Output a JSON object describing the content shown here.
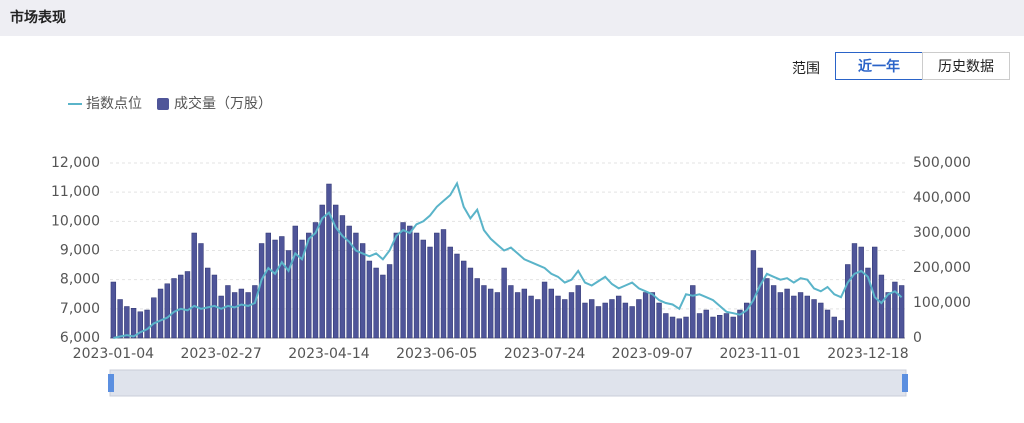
{
  "ui": {
    "title": "市场表现",
    "range_label": "范围",
    "buttons": [
      "近一年",
      "历史数据"
    ]
  },
  "chart_data": {
    "type": "combo",
    "categories": [
      "2023-01-04",
      null,
      null,
      null,
      null,
      null,
      null,
      null,
      null,
      null,
      null,
      null,
      null,
      null,
      null,
      null,
      "2023-02-27",
      null,
      null,
      null,
      null,
      null,
      null,
      null,
      null,
      null,
      null,
      null,
      null,
      null,
      null,
      null,
      "2023-04-14",
      null,
      null,
      null,
      null,
      null,
      null,
      null,
      null,
      null,
      null,
      null,
      null,
      null,
      null,
      null,
      "2023-06-05",
      null,
      null,
      null,
      null,
      null,
      null,
      null,
      null,
      null,
      null,
      null,
      null,
      null,
      null,
      null,
      "2023-07-24",
      null,
      null,
      null,
      null,
      null,
      null,
      null,
      null,
      null,
      null,
      null,
      null,
      null,
      null,
      null,
      "2023-09-07",
      null,
      null,
      null,
      null,
      null,
      null,
      null,
      null,
      null,
      null,
      null,
      null,
      null,
      null,
      null,
      "2023-11-01",
      null,
      null,
      null,
      null,
      null,
      null,
      null,
      null,
      null,
      null,
      null,
      null,
      null,
      null,
      null,
      "2023-12-18",
      null,
      null,
      null,
      null,
      null
    ],
    "series": [
      {
        "name": "指数点位",
        "type": "line",
        "color": "#5ab4c9",
        "axis": "y",
        "values": [
          6000,
          6050,
          6100,
          6050,
          6200,
          6300,
          6500,
          6600,
          6700,
          6900,
          7000,
          6950,
          7100,
          7000,
          7050,
          7100,
          7000,
          7100,
          7050,
          7150,
          7100,
          7200,
          8000,
          8400,
          8200,
          8600,
          8300,
          8900,
          8700,
          9400,
          9600,
          10100,
          10300,
          9800,
          9500,
          9300,
          9000,
          8900,
          8800,
          8900,
          8700,
          9000,
          9500,
          9700,
          9600,
          9900,
          10000,
          10200,
          10500,
          10700,
          10900,
          11300,
          10500,
          10100,
          10400,
          9700,
          9400,
          9200,
          9000,
          9100,
          8900,
          8700,
          8600,
          8500,
          8400,
          8200,
          8100,
          7900,
          8000,
          8300,
          7900,
          7800,
          7950,
          8100,
          7850,
          7700,
          7800,
          7900,
          7700,
          7600,
          7500,
          7300,
          7200,
          7150,
          7000,
          7500,
          7450,
          7500,
          7400,
          7300,
          7100,
          6900,
          6850,
          6800,
          6950,
          7300,
          7800,
          8200,
          8100,
          8000,
          8050,
          7900,
          8050,
          8000,
          7700,
          7600,
          7750,
          7500,
          7400,
          7900,
          8200,
          8300,
          8100,
          7400,
          7200,
          7500,
          7600,
          7400
        ]
      },
      {
        "name": "成交量（万股）",
        "type": "bar",
        "color": "#4f5599",
        "axis": "y2",
        "values": [
          160000,
          110000,
          90000,
          85000,
          75000,
          80000,
          115000,
          140000,
          155000,
          170000,
          180000,
          190000,
          300000,
          270000,
          200000,
          180000,
          120000,
          150000,
          130000,
          140000,
          130000,
          150000,
          270000,
          300000,
          280000,
          290000,
          250000,
          320000,
          280000,
          300000,
          330000,
          380000,
          440000,
          380000,
          350000,
          320000,
          300000,
          270000,
          220000,
          200000,
          180000,
          210000,
          300000,
          330000,
          320000,
          300000,
          280000,
          260000,
          300000,
          310000,
          260000,
          240000,
          220000,
          200000,
          170000,
          150000,
          140000,
          130000,
          200000,
          150000,
          130000,
          140000,
          120000,
          110000,
          160000,
          140000,
          120000,
          110000,
          130000,
          150000,
          100000,
          110000,
          90000,
          100000,
          110000,
          120000,
          100000,
          90000,
          110000,
          130000,
          130000,
          100000,
          70000,
          60000,
          55000,
          60000,
          150000,
          70000,
          80000,
          60000,
          65000,
          70000,
          60000,
          80000,
          100000,
          250000,
          200000,
          170000,
          150000,
          130000,
          140000,
          120000,
          130000,
          120000,
          110000,
          100000,
          80000,
          60000,
          50000,
          210000,
          270000,
          260000,
          200000,
          260000,
          180000,
          130000,
          160000,
          150000
        ]
      }
    ],
    "ylim": [
      6000,
      12000
    ],
    "yticks": [
      {
        "value": 6000,
        "label": "6,000"
      },
      {
        "value": 7000,
        "label": "7,000"
      },
      {
        "value": 8000,
        "label": "8,000"
      },
      {
        "value": 9000,
        "label": "9,000"
      },
      {
        "value": 10000,
        "label": "10,000"
      },
      {
        "value": 11000,
        "label": "11,000"
      },
      {
        "value": 12000,
        "label": "12,000"
      }
    ],
    "y2lim": [
      0,
      500000
    ],
    "y2ticks": [
      0,
      {
        "value": 100000,
        "label": "100,000"
      },
      {
        "value": 200000,
        "label": "200,000"
      },
      {
        "value": 300000,
        "label": "300,000"
      },
      {
        "value": 400000,
        "label": "400,000"
      },
      {
        "value": 500000,
        "label": "500,000"
      }
    ],
    "grid": true
  }
}
